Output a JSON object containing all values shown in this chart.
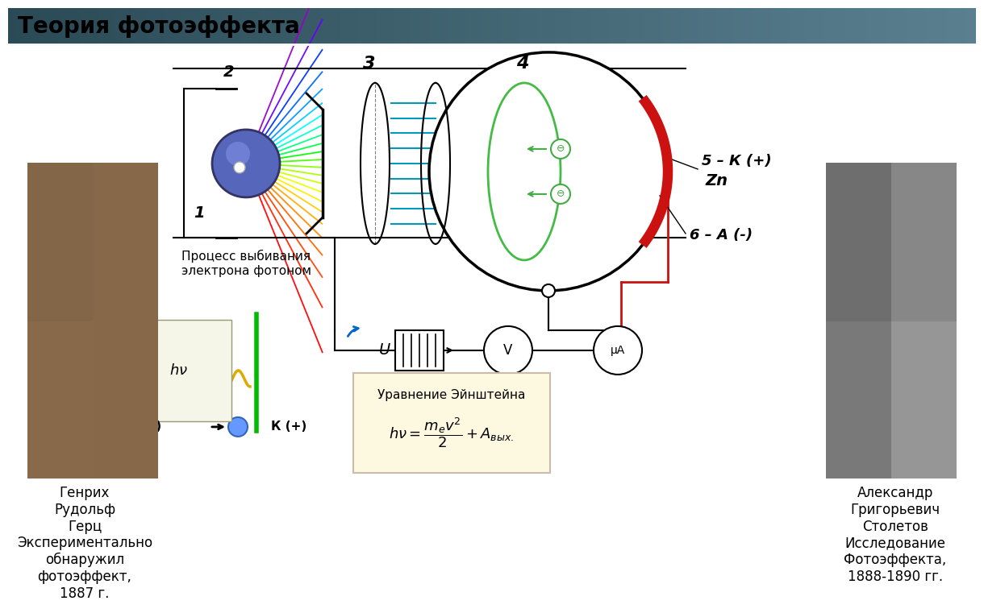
{
  "title": "Теория фотоэффекта",
  "title_bg_left": "#2a4a55",
  "title_bg_right": "#4a7080",
  "title_color": "#000000",
  "title_fontsize": 20,
  "bg_color": "#ffffff",
  "left_name": "Генрих\nРудольф\nГерц\nЭкспериментально\nобнаружил\nфотоэффект,\n1887 г.",
  "right_name": "Александр\nГригорьевич\nСтолетов\nИсследование\nФотоэффекта,\n1888-1890 гг.",
  "label_1": "1",
  "label_2": "2",
  "label_3": "3",
  "label_4": "4",
  "label_5": "5 – К (+)",
  "label_Zn": "Zn",
  "label_6": "6 – А (-)",
  "process_label": "Процесс выбивания\nэлектрона фотоном",
  "equation_label": "Уравнение Эйнштейна",
  "A_minus_label": "А (-)",
  "K_plus_label": "К (+)",
  "hv_label": "hν",
  "U_label": "U",
  "rainbow_colors": [
    "#ff0000",
    "#ff2200",
    "#ff4400",
    "#ff6600",
    "#ff8800",
    "#ffaa00",
    "#ffcc00",
    "#ffee00",
    "#eeff00",
    "#ccff00",
    "#aaff00",
    "#88ff00",
    "#44ff00",
    "#00ff00",
    "#00ff44",
    "#00ff88",
    "#00ffcc",
    "#00ffff",
    "#00ccff",
    "#0099ff",
    "#0066ff",
    "#0033ff",
    "#6600ff",
    "#9900cc"
  ],
  "teal_color": "#0099bb",
  "green_color": "#00aa00",
  "red_color": "#cc1111"
}
